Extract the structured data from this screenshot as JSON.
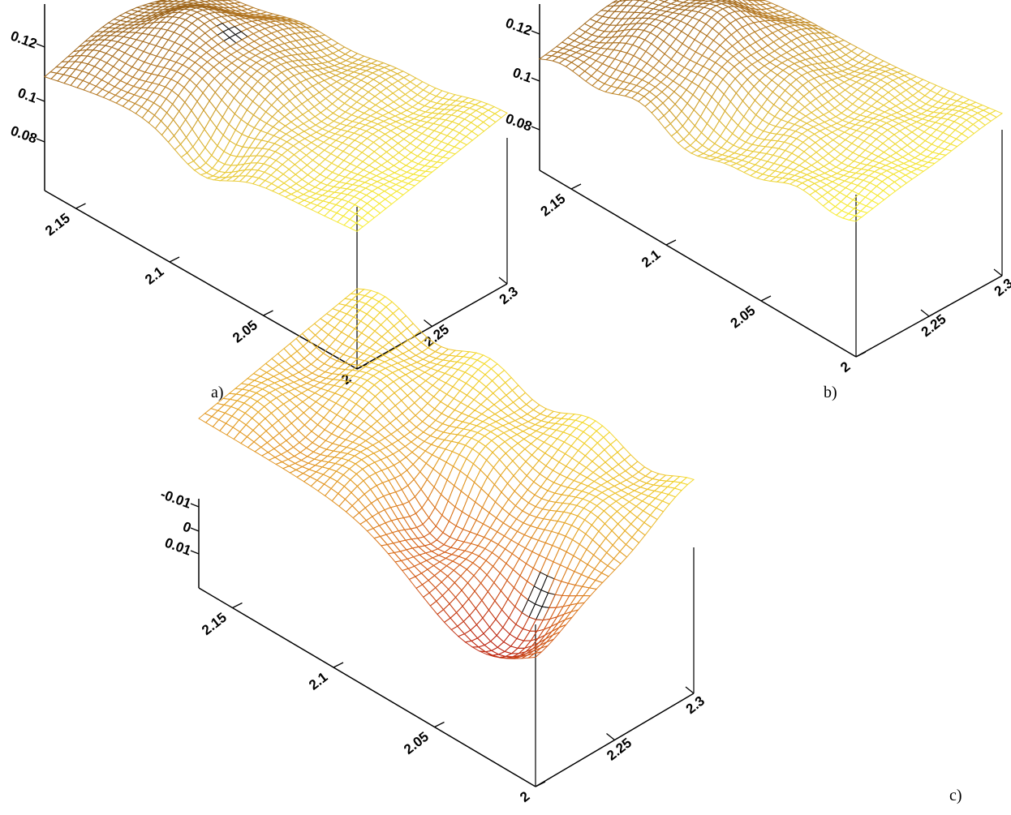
{
  "panel_labels": [
    "a)",
    "b)",
    "c)"
  ],
  "chart_data": [
    {
      "type": "surface",
      "panel": "a)",
      "x_ticks": [
        "2",
        "2.05",
        "2.1",
        "2.15"
      ],
      "y_ticks": [
        "2.25",
        "2.3"
      ],
      "z_ticks": [
        "0.08",
        "0.1",
        "0.12"
      ],
      "xlim": [
        2.0,
        2.18
      ],
      "ylim": [
        2.2,
        2.3
      ],
      "zlim": [
        0.07,
        0.13
      ],
      "colormap": [
        "#7a4a12",
        "#b77a25",
        "#e8c83a",
        "#ffff33"
      ],
      "peak_color": "#111111",
      "grid": false
    },
    {
      "type": "surface",
      "panel": "b)",
      "x_ticks": [
        "2",
        "2.05",
        "2.1",
        "2.15"
      ],
      "y_ticks": [
        "2.25",
        "2.3"
      ],
      "z_ticks": [
        "0.08",
        "0.1",
        "0.12"
      ],
      "xlim": [
        2.0,
        2.18
      ],
      "ylim": [
        2.2,
        2.3
      ],
      "zlim": [
        0.07,
        0.13
      ],
      "colormap": [
        "#7a4a12",
        "#b77a25",
        "#e8c83a",
        "#ffff33"
      ],
      "grid": false
    },
    {
      "type": "surface",
      "panel": "c)",
      "x_ticks": [
        "2",
        "2.05",
        "2.1",
        "2.15"
      ],
      "y_ticks": [
        "2.25",
        "2.3"
      ],
      "z_ticks": [
        "-0.01",
        "0",
        "0.01"
      ],
      "xlim": [
        2.0,
        2.18
      ],
      "ylim": [
        2.2,
        2.3
      ],
      "zlim": [
        -0.015,
        0.015
      ],
      "colormap": [
        "#ffff33",
        "#e8b02a",
        "#d8681c",
        "#b81c14"
      ],
      "peak_color": "#111111",
      "grid": false
    }
  ]
}
